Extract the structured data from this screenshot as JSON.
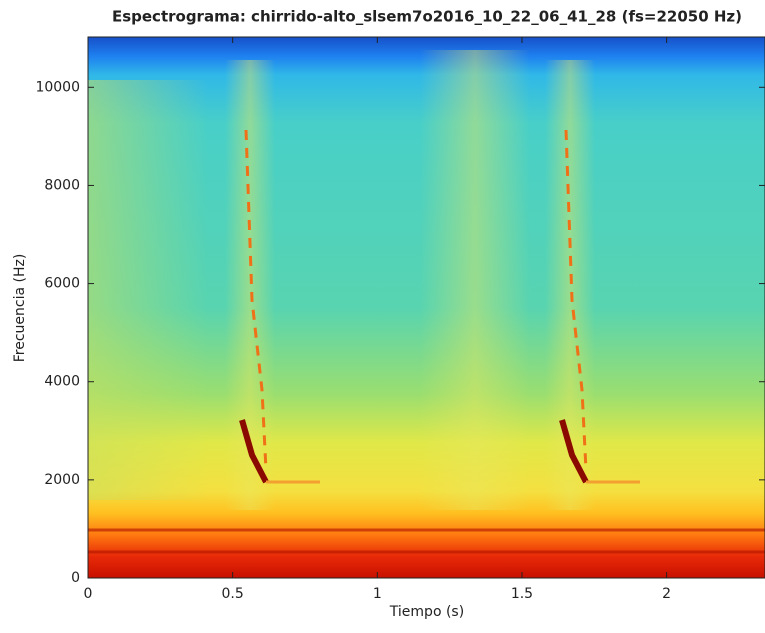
{
  "chart_data": {
    "type": "spectrogram",
    "title": "Espectrograma: chirrido-alto_slsem7o2016_10_22_06_41_28 (fs=22050 Hz)",
    "x_label": "Tiempo (s)",
    "y_label": "Frecuencia (Hz)",
    "xlim": [
      0,
      2.34
    ],
    "ylim": [
      0,
      11025
    ],
    "xticks": [
      0,
      0.5,
      1,
      1.5,
      2
    ],
    "yticks": [
      0,
      2000,
      4000,
      6000,
      8000,
      10000
    ]
  }
}
